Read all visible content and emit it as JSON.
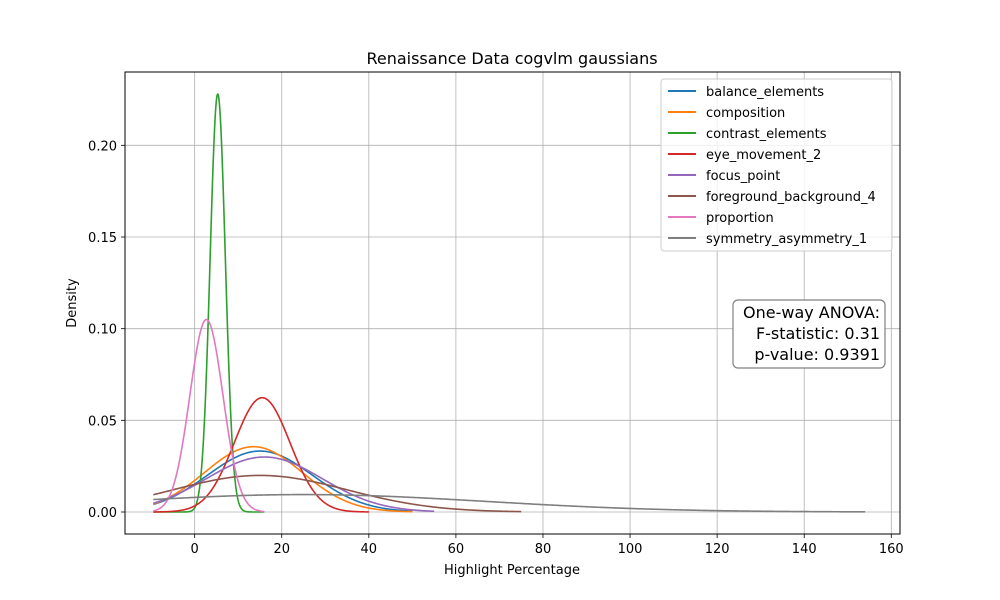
{
  "chart_data": {
    "type": "line",
    "title": "Renaissance Data cogvlm gaussians",
    "xlabel": "Highlight Percentage",
    "ylabel": "Density",
    "xlim": [
      -16,
      162
    ],
    "ylim": [
      -0.012,
      0.24
    ],
    "x_ticks": [
      0,
      20,
      40,
      60,
      80,
      100,
      120,
      140,
      160
    ],
    "y_ticks": [
      0.0,
      0.05,
      0.1,
      0.15,
      0.2
    ],
    "x_tick_labels": [
      "0",
      "20",
      "40",
      "60",
      "80",
      "100",
      "120",
      "140",
      "160"
    ],
    "y_tick_labels": [
      "0.00",
      "0.05",
      "0.10",
      "0.15",
      "0.20"
    ],
    "grid": true,
    "legend_position": "top-right",
    "series": [
      {
        "name": "balance_elements",
        "color": "#1f77b4",
        "distribution": "gaussian",
        "mean": 15.0,
        "std": 12.0,
        "x_range": [
          -9.5,
          50
        ]
      },
      {
        "name": "composition",
        "color": "#ff7f0e",
        "distribution": "gaussian",
        "mean": 13.5,
        "std": 11.2,
        "x_range": [
          -9.5,
          50
        ]
      },
      {
        "name": "contrast_elements",
        "color": "#2ca02c",
        "distribution": "gaussian",
        "mean": 5.3,
        "std": 1.75,
        "x_range": [
          -9.5,
          16
        ]
      },
      {
        "name": "eye_movement_2",
        "color": "#d62728",
        "distribution": "gaussian",
        "mean": 15.5,
        "std": 6.4,
        "x_range": [
          -9.5,
          40
        ]
      },
      {
        "name": "focus_point",
        "color": "#9467bd",
        "distribution": "gaussian",
        "mean": 16.0,
        "std": 13.3,
        "x_range": [
          -9.5,
          55
        ]
      },
      {
        "name": "foreground_background_4",
        "color": "#8c564b",
        "distribution": "gaussian",
        "mean": 15.0,
        "std": 20.0,
        "x_range": [
          -9.5,
          75
        ]
      },
      {
        "name": "proportion",
        "color": "#e377c2",
        "distribution": "gaussian",
        "mean": 2.7,
        "std": 3.8,
        "x_range": [
          -9.5,
          16
        ]
      },
      {
        "name": "symmetry_asymmetry_1",
        "color": "#7f7f7f",
        "distribution": "gaussian",
        "mean": 25.0,
        "std": 42.0,
        "x_range": [
          -9.5,
          154
        ]
      }
    ],
    "annotation": {
      "lines": [
        "One-way ANOVA:",
        "F-statistic: 0.31",
        "p-value: 0.9391"
      ]
    }
  }
}
